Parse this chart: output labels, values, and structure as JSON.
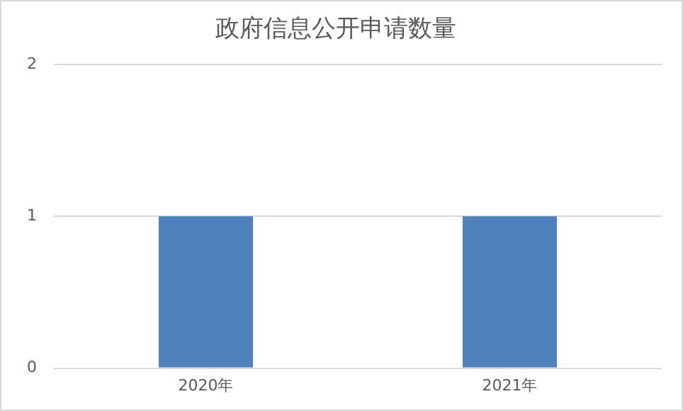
{
  "chart_data": {
    "type": "bar",
    "title": "政府信息公开申请数量",
    "categories": [
      "2020年",
      "2021年"
    ],
    "values": [
      1,
      1
    ],
    "color": "#4f81bd",
    "ylim": [
      0,
      2
    ],
    "yticks": [
      0,
      1,
      2
    ],
    "grid": "y",
    "legend": false
  }
}
